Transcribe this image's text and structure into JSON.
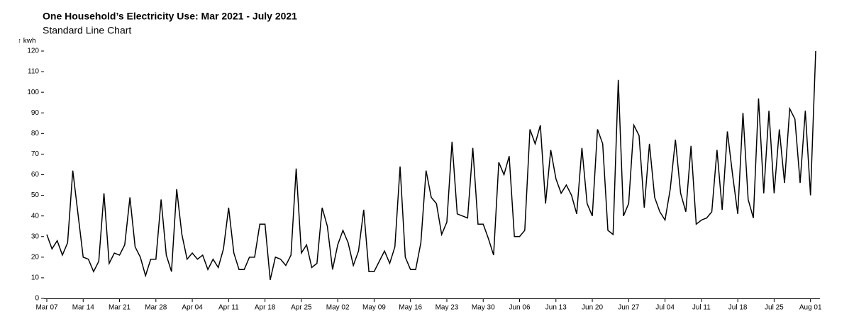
{
  "chart_data": {
    "type": "line",
    "title": "One Household’s Electricity Use: Mar 2021 - July 2021",
    "subtitle": "Standard Line Chart",
    "y_label": "↑ kwh",
    "color": "#000000",
    "categories": [
      "Mar 07",
      "Mar 08",
      "Mar 09",
      "Mar 10",
      "Mar 11",
      "Mar 12",
      "Mar 13",
      "Mar 14",
      "Mar 15",
      "Mar 16",
      "Mar 17",
      "Mar 18",
      "Mar 19",
      "Mar 20",
      "Mar 21",
      "Mar 22",
      "Mar 23",
      "Mar 24",
      "Mar 25",
      "Mar 26",
      "Mar 27",
      "Mar 28",
      "Mar 29",
      "Mar 30",
      "Mar 31",
      "Apr 01",
      "Apr 02",
      "Apr 03",
      "Apr 04",
      "Apr 05",
      "Apr 06",
      "Apr 07",
      "Apr 08",
      "Apr 09",
      "Apr 10",
      "Apr 11",
      "Apr 12",
      "Apr 13",
      "Apr 14",
      "Apr 15",
      "Apr 16",
      "Apr 17",
      "Apr 18",
      "Apr 19",
      "Apr 20",
      "Apr 21",
      "Apr 22",
      "Apr 23",
      "Apr 24",
      "Apr 25",
      "Apr 26",
      "Apr 27",
      "Apr 28",
      "Apr 29",
      "Apr 30",
      "May 01",
      "May 02",
      "May 03",
      "May 04",
      "May 05",
      "May 06",
      "May 07",
      "May 08",
      "May 09",
      "May 10",
      "May 11",
      "May 12",
      "May 13",
      "May 14",
      "May 15",
      "May 16",
      "May 17",
      "May 18",
      "May 19",
      "May 20",
      "May 21",
      "May 22",
      "May 23",
      "May 24",
      "May 25",
      "May 26",
      "May 27",
      "May 28",
      "May 29",
      "May 30",
      "May 31",
      "Jun 01",
      "Jun 02",
      "Jun 03",
      "Jun 04",
      "Jun 05",
      "Jun 06",
      "Jun 07",
      "Jun 08",
      "Jun 09",
      "Jun 10",
      "Jun 11",
      "Jun 12",
      "Jun 13",
      "Jun 14",
      "Jun 15",
      "Jun 16",
      "Jun 17",
      "Jun 18",
      "Jun 19",
      "Jun 20",
      "Jun 21",
      "Jun 22",
      "Jun 23",
      "Jun 24",
      "Jun 25",
      "Jun 26",
      "Jun 27",
      "Jun 28",
      "Jun 29",
      "Jun 30",
      "Jul 01",
      "Jul 02",
      "Jul 03",
      "Jul 04",
      "Jul 05",
      "Jul 06",
      "Jul 07",
      "Jul 08",
      "Jul 09",
      "Jul 10",
      "Jul 11",
      "Jul 12",
      "Jul 13",
      "Jul 14",
      "Jul 15",
      "Jul 16",
      "Jul 17",
      "Jul 18",
      "Jul 19",
      "Jul 20",
      "Jul 21",
      "Jul 22",
      "Jul 23",
      "Jul 24",
      "Jul 25",
      "Jul 26",
      "Jul 27",
      "Jul 28",
      "Jul 29",
      "Jul 30",
      "Jul 31",
      "Aug 01",
      "Aug 02"
    ],
    "values": [
      31,
      24,
      28,
      21,
      27,
      62,
      41,
      20,
      19,
      13,
      18,
      51,
      17,
      22,
      21,
      26,
      49,
      25,
      20,
      11,
      19,
      19,
      48,
      21,
      13,
      53,
      31,
      19,
      22,
      19,
      21,
      14,
      19,
      15,
      24,
      44,
      22,
      14,
      14,
      20,
      20,
      36,
      36,
      9,
      20,
      19,
      16,
      21,
      63,
      22,
      26,
      15,
      17,
      44,
      35,
      14,
      26,
      33,
      27,
      16,
      23,
      43,
      13,
      13,
      18,
      23,
      17,
      25,
      64,
      20,
      14,
      14,
      27,
      62,
      49,
      46,
      31,
      37,
      76,
      41,
      40,
      39,
      73,
      36,
      36,
      29,
      21,
      66,
      60,
      69,
      30,
      30,
      33,
      82,
      75,
      84,
      46,
      72,
      58,
      51,
      55,
      50,
      41,
      73,
      46,
      40,
      82,
      75,
      33,
      31,
      106,
      40,
      46,
      84,
      79,
      44,
      75,
      49,
      42,
      38,
      53,
      77,
      51,
      42,
      74,
      36,
      38,
      39,
      42,
      72,
      43,
      81,
      60,
      41,
      90,
      48,
      39,
      97,
      51,
      91,
      51,
      82,
      56,
      92,
      87,
      56,
      91,
      50,
      120
    ],
    "ylim": [
      0,
      120
    ],
    "yticks": [
      0,
      10,
      20,
      30,
      40,
      50,
      60,
      70,
      80,
      90,
      100,
      110,
      120
    ]
  }
}
